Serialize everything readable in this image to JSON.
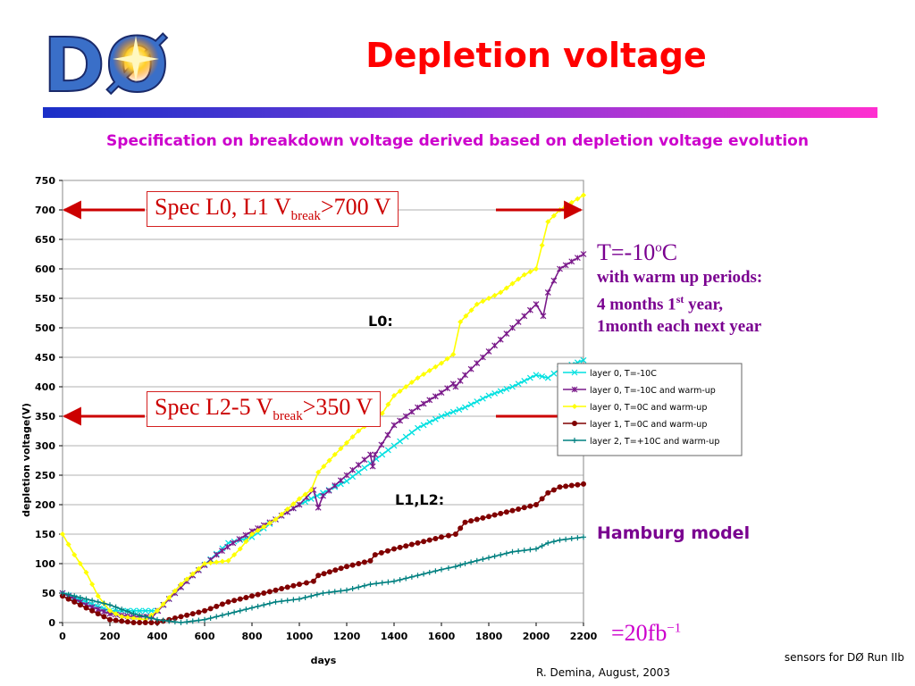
{
  "logo": {
    "text": "DØ"
  },
  "title": "Depletion voltage",
  "subtitle": "Specification on breakdown voltage derived based on depletion voltage evolution",
  "spec_boxes": [
    {
      "text": "Spec L0, L1 V",
      "sub": "break",
      "suffix": ">700 V",
      "arrow_at": 700
    },
    {
      "text": "Spec L2-5 V",
      "sub": "break",
      "suffix": ">350 V",
      "arrow_at": 350
    }
  ],
  "notes": {
    "temp": "T=-10",
    "temp_sup": "o",
    "temp_unit": "C",
    "line1": "with warm up periods:",
    "line2a": "4 months 1",
    "line2sup": "st",
    "line2b": " year,",
    "line3": "1month each next year"
  },
  "hamburg": "Hamburg model",
  "lumi": {
    "text": "=20fb",
    "sup": "−1"
  },
  "footer_right": "sensors for DØ Run IIb",
  "footer_author": "R. Demina, August, 2003",
  "colors": {
    "title": "#ff0000",
    "subtitle": "#cc00cc",
    "note": "#7a0090",
    "spec": "#cc0000"
  },
  "chart_data": {
    "type": "line",
    "xlabel": "days",
    "ylabel": "depletion voltage(V)",
    "xlim": [
      0,
      2200
    ],
    "ylim": [
      0,
      750
    ],
    "xticks": [
      0,
      200,
      400,
      600,
      800,
      1000,
      1200,
      1400,
      1600,
      1800,
      2000,
      2200
    ],
    "yticks": [
      0,
      50,
      100,
      150,
      200,
      250,
      300,
      350,
      400,
      450,
      500,
      550,
      600,
      650,
      700,
      750
    ],
    "grid": "horizontal",
    "legend_position": "right",
    "annotations": [
      "L0:",
      "L1,L2:"
    ],
    "series": [
      {
        "name": "layer 0, T=-10C",
        "color": "#00e0e0",
        "marker": "x",
        "points": [
          [
            0,
            50
          ],
          [
            100,
            35
          ],
          [
            200,
            20
          ],
          [
            300,
            20
          ],
          [
            400,
            20
          ],
          [
            550,
            80
          ],
          [
            700,
            135
          ],
          [
            800,
            145
          ],
          [
            900,
            175
          ],
          [
            1000,
            200
          ],
          [
            1100,
            220
          ],
          [
            1200,
            240
          ],
          [
            1300,
            270
          ],
          [
            1400,
            300
          ],
          [
            1500,
            330
          ],
          [
            1600,
            350
          ],
          [
            1700,
            365
          ],
          [
            1800,
            385
          ],
          [
            1900,
            400
          ],
          [
            2000,
            420
          ],
          [
            2050,
            415
          ],
          [
            2100,
            430
          ],
          [
            2200,
            445
          ]
        ]
      },
      {
        "name": "layer 0, T=-10C and warm-up",
        "color": "#7a1a8a",
        "marker": "*",
        "points": [
          [
            0,
            50
          ],
          [
            100,
            30
          ],
          [
            200,
            15
          ],
          [
            300,
            10
          ],
          [
            380,
            10
          ],
          [
            450,
            40
          ],
          [
            550,
            80
          ],
          [
            650,
            115
          ],
          [
            720,
            135
          ],
          [
            800,
            155
          ],
          [
            900,
            175
          ],
          [
            1000,
            200
          ],
          [
            1060,
            225
          ],
          [
            1080,
            195
          ],
          [
            1100,
            215
          ],
          [
            1200,
            250
          ],
          [
            1300,
            285
          ],
          [
            1310,
            265
          ],
          [
            1320,
            285
          ],
          [
            1400,
            335
          ],
          [
            1500,
            365
          ],
          [
            1600,
            390
          ],
          [
            1650,
            405
          ],
          [
            1660,
            400
          ],
          [
            1700,
            420
          ],
          [
            1800,
            460
          ],
          [
            1900,
            500
          ],
          [
            2000,
            540
          ],
          [
            2030,
            520
          ],
          [
            2050,
            560
          ],
          [
            2100,
            600
          ],
          [
            2200,
            625
          ]
        ]
      },
      {
        "name": "layer 0, T=0C and warm-up",
        "color": "#ffff00",
        "marker": "diamond",
        "points": [
          [
            0,
            150
          ],
          [
            50,
            115
          ],
          [
            100,
            85
          ],
          [
            150,
            45
          ],
          [
            200,
            20
          ],
          [
            250,
            10
          ],
          [
            350,
            5
          ],
          [
            400,
            20
          ],
          [
            500,
            65
          ],
          [
            600,
            100
          ],
          [
            700,
            105
          ],
          [
            750,
            125
          ],
          [
            800,
            150
          ],
          [
            900,
            175
          ],
          [
            1000,
            210
          ],
          [
            1050,
            225
          ],
          [
            1080,
            255
          ],
          [
            1150,
            285
          ],
          [
            1250,
            325
          ],
          [
            1350,
            355
          ],
          [
            1400,
            385
          ],
          [
            1500,
            415
          ],
          [
            1600,
            440
          ],
          [
            1650,
            455
          ],
          [
            1680,
            510
          ],
          [
            1750,
            540
          ],
          [
            1850,
            560
          ],
          [
            1950,
            590
          ],
          [
            2000,
            600
          ],
          [
            2050,
            680
          ],
          [
            2100,
            700
          ],
          [
            2200,
            725
          ]
        ]
      },
      {
        "name": "layer 1, T=0C and warm-up",
        "color": "#800000",
        "marker": "circle",
        "points": [
          [
            0,
            45
          ],
          [
            100,
            25
          ],
          [
            200,
            5
          ],
          [
            300,
            0
          ],
          [
            400,
            0
          ],
          [
            500,
            10
          ],
          [
            600,
            20
          ],
          [
            700,
            35
          ],
          [
            750,
            40
          ],
          [
            800,
            45
          ],
          [
            900,
            55
          ],
          [
            1000,
            65
          ],
          [
            1060,
            70
          ],
          [
            1080,
            80
          ],
          [
            1200,
            95
          ],
          [
            1300,
            105
          ],
          [
            1320,
            115
          ],
          [
            1400,
            125
          ],
          [
            1500,
            135
          ],
          [
            1600,
            145
          ],
          [
            1660,
            150
          ],
          [
            1700,
            170
          ],
          [
            1800,
            180
          ],
          [
            1900,
            190
          ],
          [
            2000,
            200
          ],
          [
            2050,
            220
          ],
          [
            2100,
            230
          ],
          [
            2200,
            235
          ]
        ]
      },
      {
        "name": "layer 2, T=+10C and warm-up",
        "color": "#008080",
        "marker": "+",
        "points": [
          [
            0,
            50
          ],
          [
            100,
            40
          ],
          [
            200,
            30
          ],
          [
            300,
            15
          ],
          [
            400,
            5
          ],
          [
            500,
            0
          ],
          [
            600,
            5
          ],
          [
            700,
            15
          ],
          [
            800,
            25
          ],
          [
            900,
            35
          ],
          [
            1000,
            40
          ],
          [
            1100,
            50
          ],
          [
            1200,
            55
          ],
          [
            1300,
            65
          ],
          [
            1400,
            70
          ],
          [
            1500,
            80
          ],
          [
            1600,
            90
          ],
          [
            1660,
            95
          ],
          [
            1700,
            100
          ],
          [
            1800,
            110
          ],
          [
            1900,
            120
          ],
          [
            2000,
            125
          ],
          [
            2050,
            135
          ],
          [
            2100,
            140
          ],
          [
            2200,
            145
          ]
        ]
      }
    ]
  }
}
